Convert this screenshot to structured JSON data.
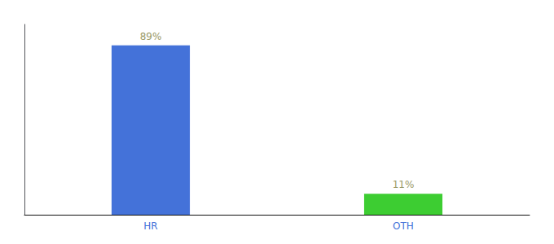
{
  "chart_data": {
    "type": "bar",
    "categories": [
      "HR",
      "OTH"
    ],
    "values": [
      89,
      11
    ],
    "value_labels": [
      "89%",
      "11%"
    ],
    "colors": [
      "#4472d9",
      "#3dcd32"
    ],
    "ylim": [
      0,
      100
    ],
    "grid": false,
    "data_labels": true,
    "tick_labels": "x"
  }
}
